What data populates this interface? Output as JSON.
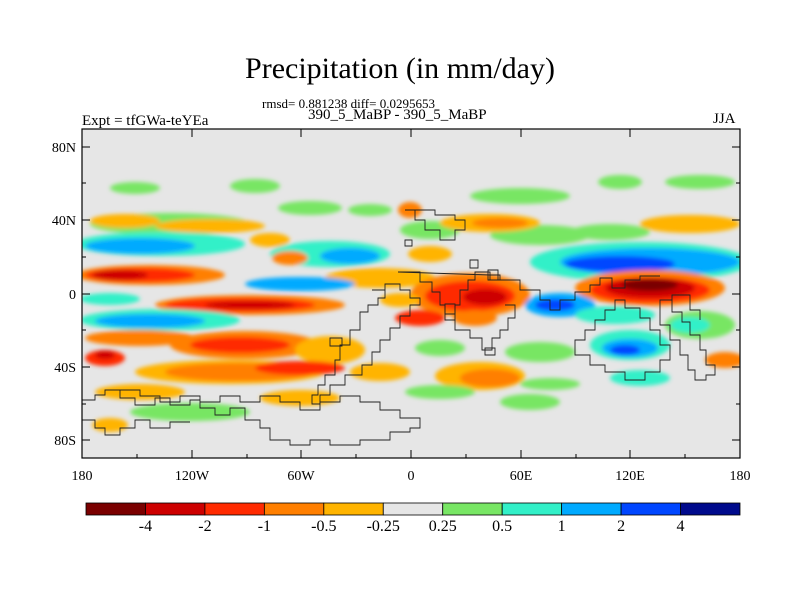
{
  "title": "Precipitation (in mm/day)",
  "stats": "rmsd= 0.881238 diff= 0.0295653",
  "experiment": "Expt = tfGWa-teYEa",
  "case_id": "390_5_MaBP - 390_5_MaBP",
  "season": "JJA",
  "lat_ticks": [
    "80N",
    "40N",
    "0",
    "40S",
    "80S"
  ],
  "lon_ticks": [
    "180",
    "120W",
    "60W",
    "0",
    "60E",
    "120E",
    "180"
  ],
  "colorbar": {
    "labels": [
      "-4",
      "-2",
      "-1",
      "-0.5",
      "-0.25",
      "0.25",
      "0.5",
      "1",
      "2",
      "4"
    ],
    "colors": [
      "#7a0000",
      "#cd0000",
      "#ff2a00",
      "#ff7f00",
      "#ffb400",
      "#e6e6e6",
      "#78e664",
      "#32f0c8",
      "#00aaff",
      "#0046ff",
      "#000a8c"
    ]
  },
  "colors": {
    "background": "#e6e6e6"
  }
}
